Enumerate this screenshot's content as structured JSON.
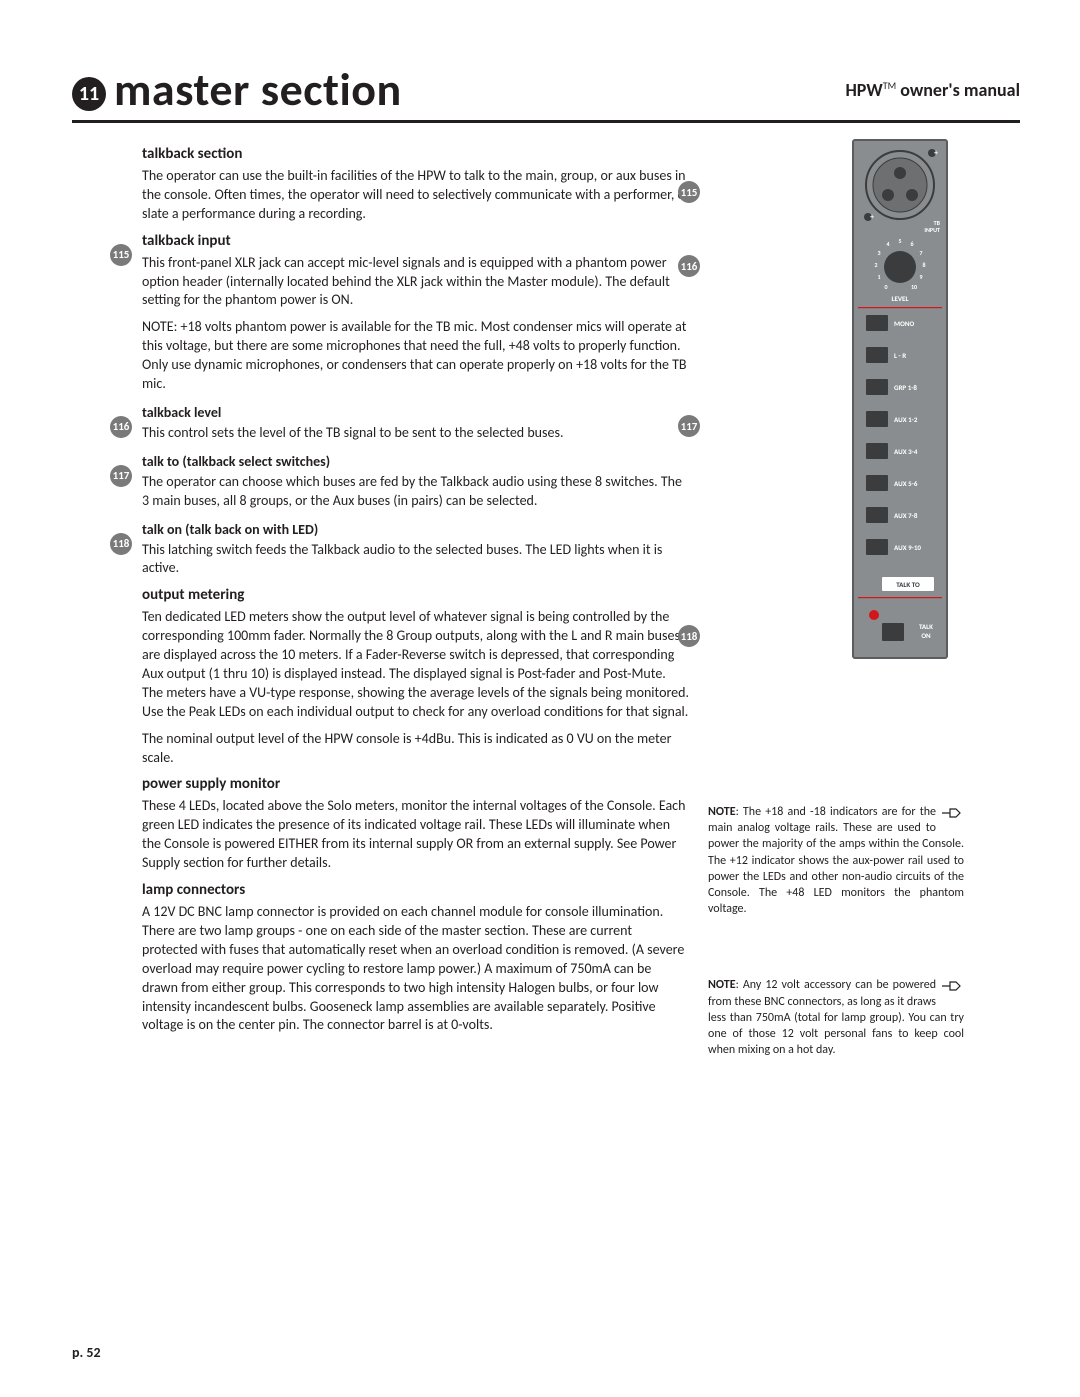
{
  "header": {
    "chapter_num": "11",
    "chapter_title": "master section",
    "manual_right_bold": "HPW",
    "manual_right_tm": "TM",
    "manual_right_rest": " owner's manual"
  },
  "sections": {
    "talkback_section": {
      "heading": "talkback section",
      "body": "The operator can use the built-in facilities of the HPW to talk to the main, group, or aux buses in the console. Often times, the operator will need to selectively communicate with a performer, or slate a performance during a recording."
    },
    "talkback_input": {
      "num": "115",
      "heading": "talkback input",
      "body1": "This front-panel XLR jack can accept mic-level signals and is equipped with a phantom power option header (internally located behind the XLR jack within the Master module). The default setting for the phantom power is ON.",
      "body2": "NOTE: +18 volts phantom power is available for the TB mic. Most condenser mics will operate at this voltage, but there are some microphones that need the full, +48 volts to properly function. Only use dynamic microphones, or condensers that can operate properly on +18 volts for the TB mic."
    },
    "talkback_level": {
      "num": "116",
      "heading": "talkback level",
      "body": "This control sets the level of the TB signal to be sent to the selected buses."
    },
    "talkback_select": {
      "num": "117",
      "heading": "talk to (talkback select switches)",
      "body": "The operator can choose which buses are fed by the Talkback audio using these 8 switches. The 3 main buses, all 8 groups, or the Aux buses (in pairs) can be selected."
    },
    "talk_on": {
      "num": "118",
      "heading": "talk on (talk back on with LED)",
      "body": "This latching switch feeds the Talkback audio to the selected buses.  The LED lights when it is active."
    },
    "output_metering": {
      "heading": "output metering",
      "body1": "Ten dedicated LED meters show the output level of whatever signal is being controlled by the corresponding 100mm fader. Normally the 8 Group outputs, along with the L and R main buses are displayed across the 10 meters. If a Fader-Reverse switch is depressed, that corresponding Aux output (1 thru 10) is displayed instead. The displayed signal is Post-fader and Post-Mute.  The meters have a VU-type response, showing the average levels of the signals being monitored. Use the Peak LEDs on each individual output to check for any overload conditions for that signal.",
      "body2": "The nominal output level of the HPW console is +4dBu. This is indicated as 0 VU on the meter scale."
    },
    "power_supply": {
      "heading": "power supply monitor",
      "body": "These 4 LEDs, located above the Solo meters, monitor the internal voltages of the Console. Each green LED indicates the presence of its indicated voltage rail.  These LEDs will illuminate when the Console is powered EITHER from its internal supply OR from an external supply. See Power Supply section for further details."
    },
    "lamp_connectors": {
      "heading": "lamp connectors",
      "body": "A 12V DC BNC lamp connector is provided on each channel module for console illumination. There are two lamp groups - one on each side of the master section. These are current protected with fuses that automatically reset when an overload condition is removed.  (A severe overload may require power cycling to restore lamp power.)  A maximum of 750mA can be drawn from either  group. This corresponds to two high intensity Halogen bulbs, or four low intensity incandescent bulbs. Gooseneck lamp assemblies are available separately. Positive voltage is on the center pin.  The connector barrel is at 0-volts."
    }
  },
  "side": {
    "callouts": [
      "115",
      "116",
      "117",
      "118"
    ],
    "panel": {
      "bg": "#8a8d8f",
      "border": "#5a5c5e",
      "tb_input_label": "TB\nINPUT",
      "level_label": "LEVEL",
      "dial_nums": [
        "0",
        "1",
        "2",
        "3",
        "4",
        "5",
        "6",
        "7",
        "8",
        "9",
        "10"
      ],
      "switches": [
        "MONO",
        "L - R",
        "GRP 1-8",
        "AUX 1-2",
        "AUX 3-4",
        "AUX 5-6",
        "AUX 7-8",
        "AUX 9-10"
      ],
      "talk_to": "TALK TO",
      "talk_on": "TALK\nON",
      "led_color": "#d4151a",
      "switch_bg": "#3a3c3e",
      "switch_text": "#ffffff",
      "talkto_bg": "#ffffff",
      "talkto_text": "#3a3c3e"
    },
    "note1": {
      "bold": "NOTE",
      "text": ":  The  +18  and  -18 indicators  are  for  the  main analog voltage rails.  These are used to power the majority of the amps within the Console. The +12 indicator shows the aux-power rail used to power the LEDs and other non-audio circuits of the Console. The +48 LED monitors the phantom voltage."
    },
    "note2": {
      "bold": "NOTE",
      "text": ":  Any 12 volt accessory can be powered from these BNC connectors, as long as it draws less than 750mA (total for lamp group). You can try one of those 12 volt personal fans to keep cool when mixing on a hot day."
    }
  },
  "page_num": "p. 52"
}
